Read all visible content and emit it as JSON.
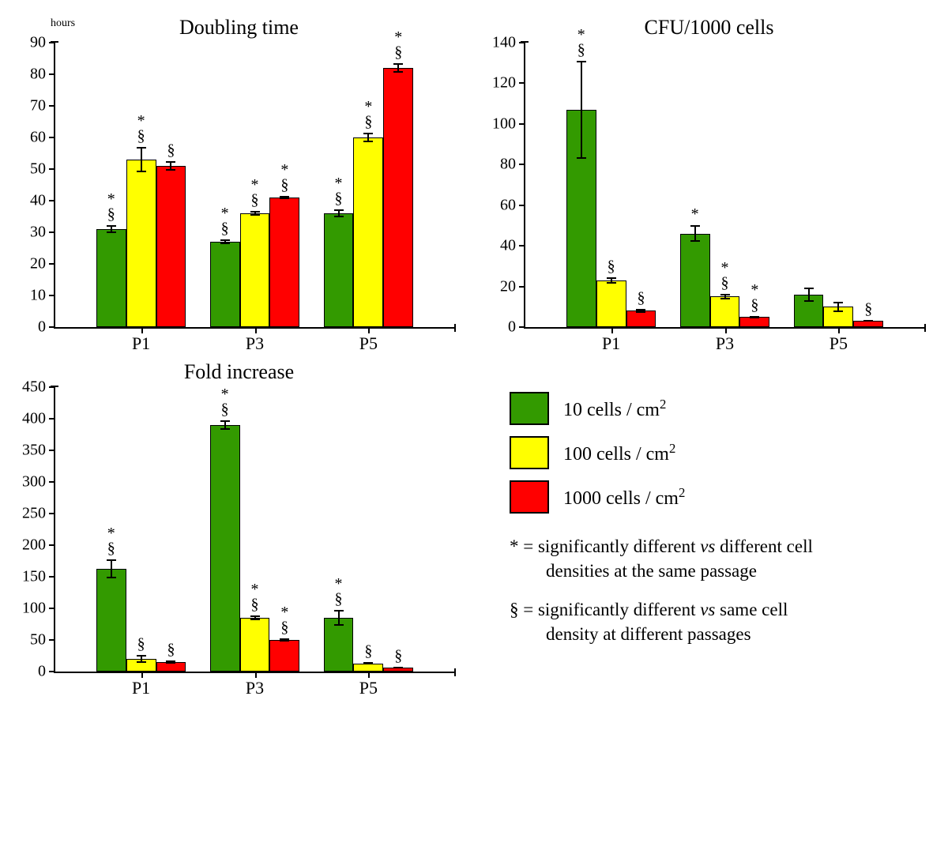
{
  "colors": {
    "series": {
      "s10": "#339a00",
      "s100": "#ffff00",
      "s1000": "#ff0000"
    },
    "axis": "#000000",
    "background": "#ffffff"
  },
  "legend": {
    "items": [
      {
        "key": "s10",
        "label_html": "10 cells / cm²"
      },
      {
        "key": "s100",
        "label_html": "100 cells / cm²"
      },
      {
        "key": "s1000",
        "label_html": "1000 cells / cm²"
      }
    ],
    "note_star": "* = significantly different <i>vs</i> different cell densities at the same passage",
    "note_sect": "§ = significantly different <i>vs</i> same cell density at different passages"
  },
  "charts": [
    {
      "id": "doubling",
      "title": "Doubling time",
      "y_axis_label": "hours",
      "ylim": [
        0,
        90
      ],
      "ytick_step": 10,
      "categories": [
        "P1",
        "P3",
        "P5"
      ],
      "bar_width_pct": 7.5,
      "group_gap_pct": 6,
      "groups": [
        {
          "cat": "P1",
          "bars": [
            {
              "series": "s10",
              "value": 31,
              "err": 1.2,
              "ann": "*\n§"
            },
            {
              "series": "s100",
              "value": 53,
              "err": 4.0,
              "ann": "*\n§"
            },
            {
              "series": "s1000",
              "value": 51,
              "err": 1.5,
              "ann": "§"
            }
          ]
        },
        {
          "cat": "P3",
          "bars": [
            {
              "series": "s10",
              "value": 27,
              "err": 0.8,
              "ann": "*\n§"
            },
            {
              "series": "s100",
              "value": 36,
              "err": 0.8,
              "ann": "*\n§"
            },
            {
              "series": "s1000",
              "value": 41,
              "err": 0.6,
              "ann": "*\n§"
            }
          ]
        },
        {
          "cat": "P5",
          "bars": [
            {
              "series": "s10",
              "value": 36,
              "err": 1.2,
              "ann": "*\n§"
            },
            {
              "series": "s100",
              "value": 60,
              "err": 1.5,
              "ann": "*\n§"
            },
            {
              "series": "s1000",
              "value": 82,
              "err": 1.5,
              "ann": "*\n§"
            }
          ]
        }
      ]
    },
    {
      "id": "cfu",
      "title": "CFU/1000 cells",
      "y_axis_label": "",
      "ylim": [
        0,
        140
      ],
      "ytick_step": 20,
      "categories": [
        "P1",
        "P3",
        "P5"
      ],
      "bar_width_pct": 7.5,
      "group_gap_pct": 6,
      "groups": [
        {
          "cat": "P1",
          "bars": [
            {
              "series": "s10",
              "value": 107,
              "err": 24,
              "ann": "*\n§"
            },
            {
              "series": "s100",
              "value": 23,
              "err": 1.5,
              "ann": "§"
            },
            {
              "series": "s1000",
              "value": 8,
              "err": 0.8,
              "ann": "§"
            }
          ]
        },
        {
          "cat": "P3",
          "bars": [
            {
              "series": "s10",
              "value": 46,
              "err": 4,
              "ann": "*"
            },
            {
              "series": "s100",
              "value": 15,
              "err": 1.5,
              "ann": "*\n§"
            },
            {
              "series": "s1000",
              "value": 5,
              "err": 0.6,
              "ann": "*\n§"
            }
          ]
        },
        {
          "cat": "P5",
          "bars": [
            {
              "series": "s10",
              "value": 16,
              "err": 3.5,
              "ann": ""
            },
            {
              "series": "s100",
              "value": 10,
              "err": 2.5,
              "ann": ""
            },
            {
              "series": "s1000",
              "value": 3,
              "err": 0.4,
              "ann": "§"
            }
          ]
        }
      ]
    },
    {
      "id": "fold",
      "title": "Fold increase",
      "y_axis_label": "",
      "ylim": [
        0,
        450
      ],
      "ytick_step": 50,
      "categories": [
        "P1",
        "P3",
        "P5"
      ],
      "bar_width_pct": 7.5,
      "group_gap_pct": 6,
      "groups": [
        {
          "cat": "P1",
          "bars": [
            {
              "series": "s10",
              "value": 163,
              "err": 15,
              "ann": "*\n§"
            },
            {
              "series": "s100",
              "value": 20,
              "err": 6,
              "ann": "§"
            },
            {
              "series": "s1000",
              "value": 15,
              "err": 2,
              "ann": "§"
            }
          ]
        },
        {
          "cat": "P3",
          "bars": [
            {
              "series": "s10",
              "value": 390,
              "err": 8,
              "ann": "*\n§"
            },
            {
              "series": "s100",
              "value": 85,
              "err": 4,
              "ann": "*\n§"
            },
            {
              "series": "s1000",
              "value": 50,
              "err": 3,
              "ann": "*\n§"
            }
          ]
        },
        {
          "cat": "P5",
          "bars": [
            {
              "series": "s10",
              "value": 85,
              "err": 12,
              "ann": "*\n§"
            },
            {
              "series": "s100",
              "value": 13,
              "err": 2,
              "ann": "§"
            },
            {
              "series": "s1000",
              "value": 6,
              "err": 1,
              "ann": "§"
            }
          ]
        }
      ]
    }
  ]
}
